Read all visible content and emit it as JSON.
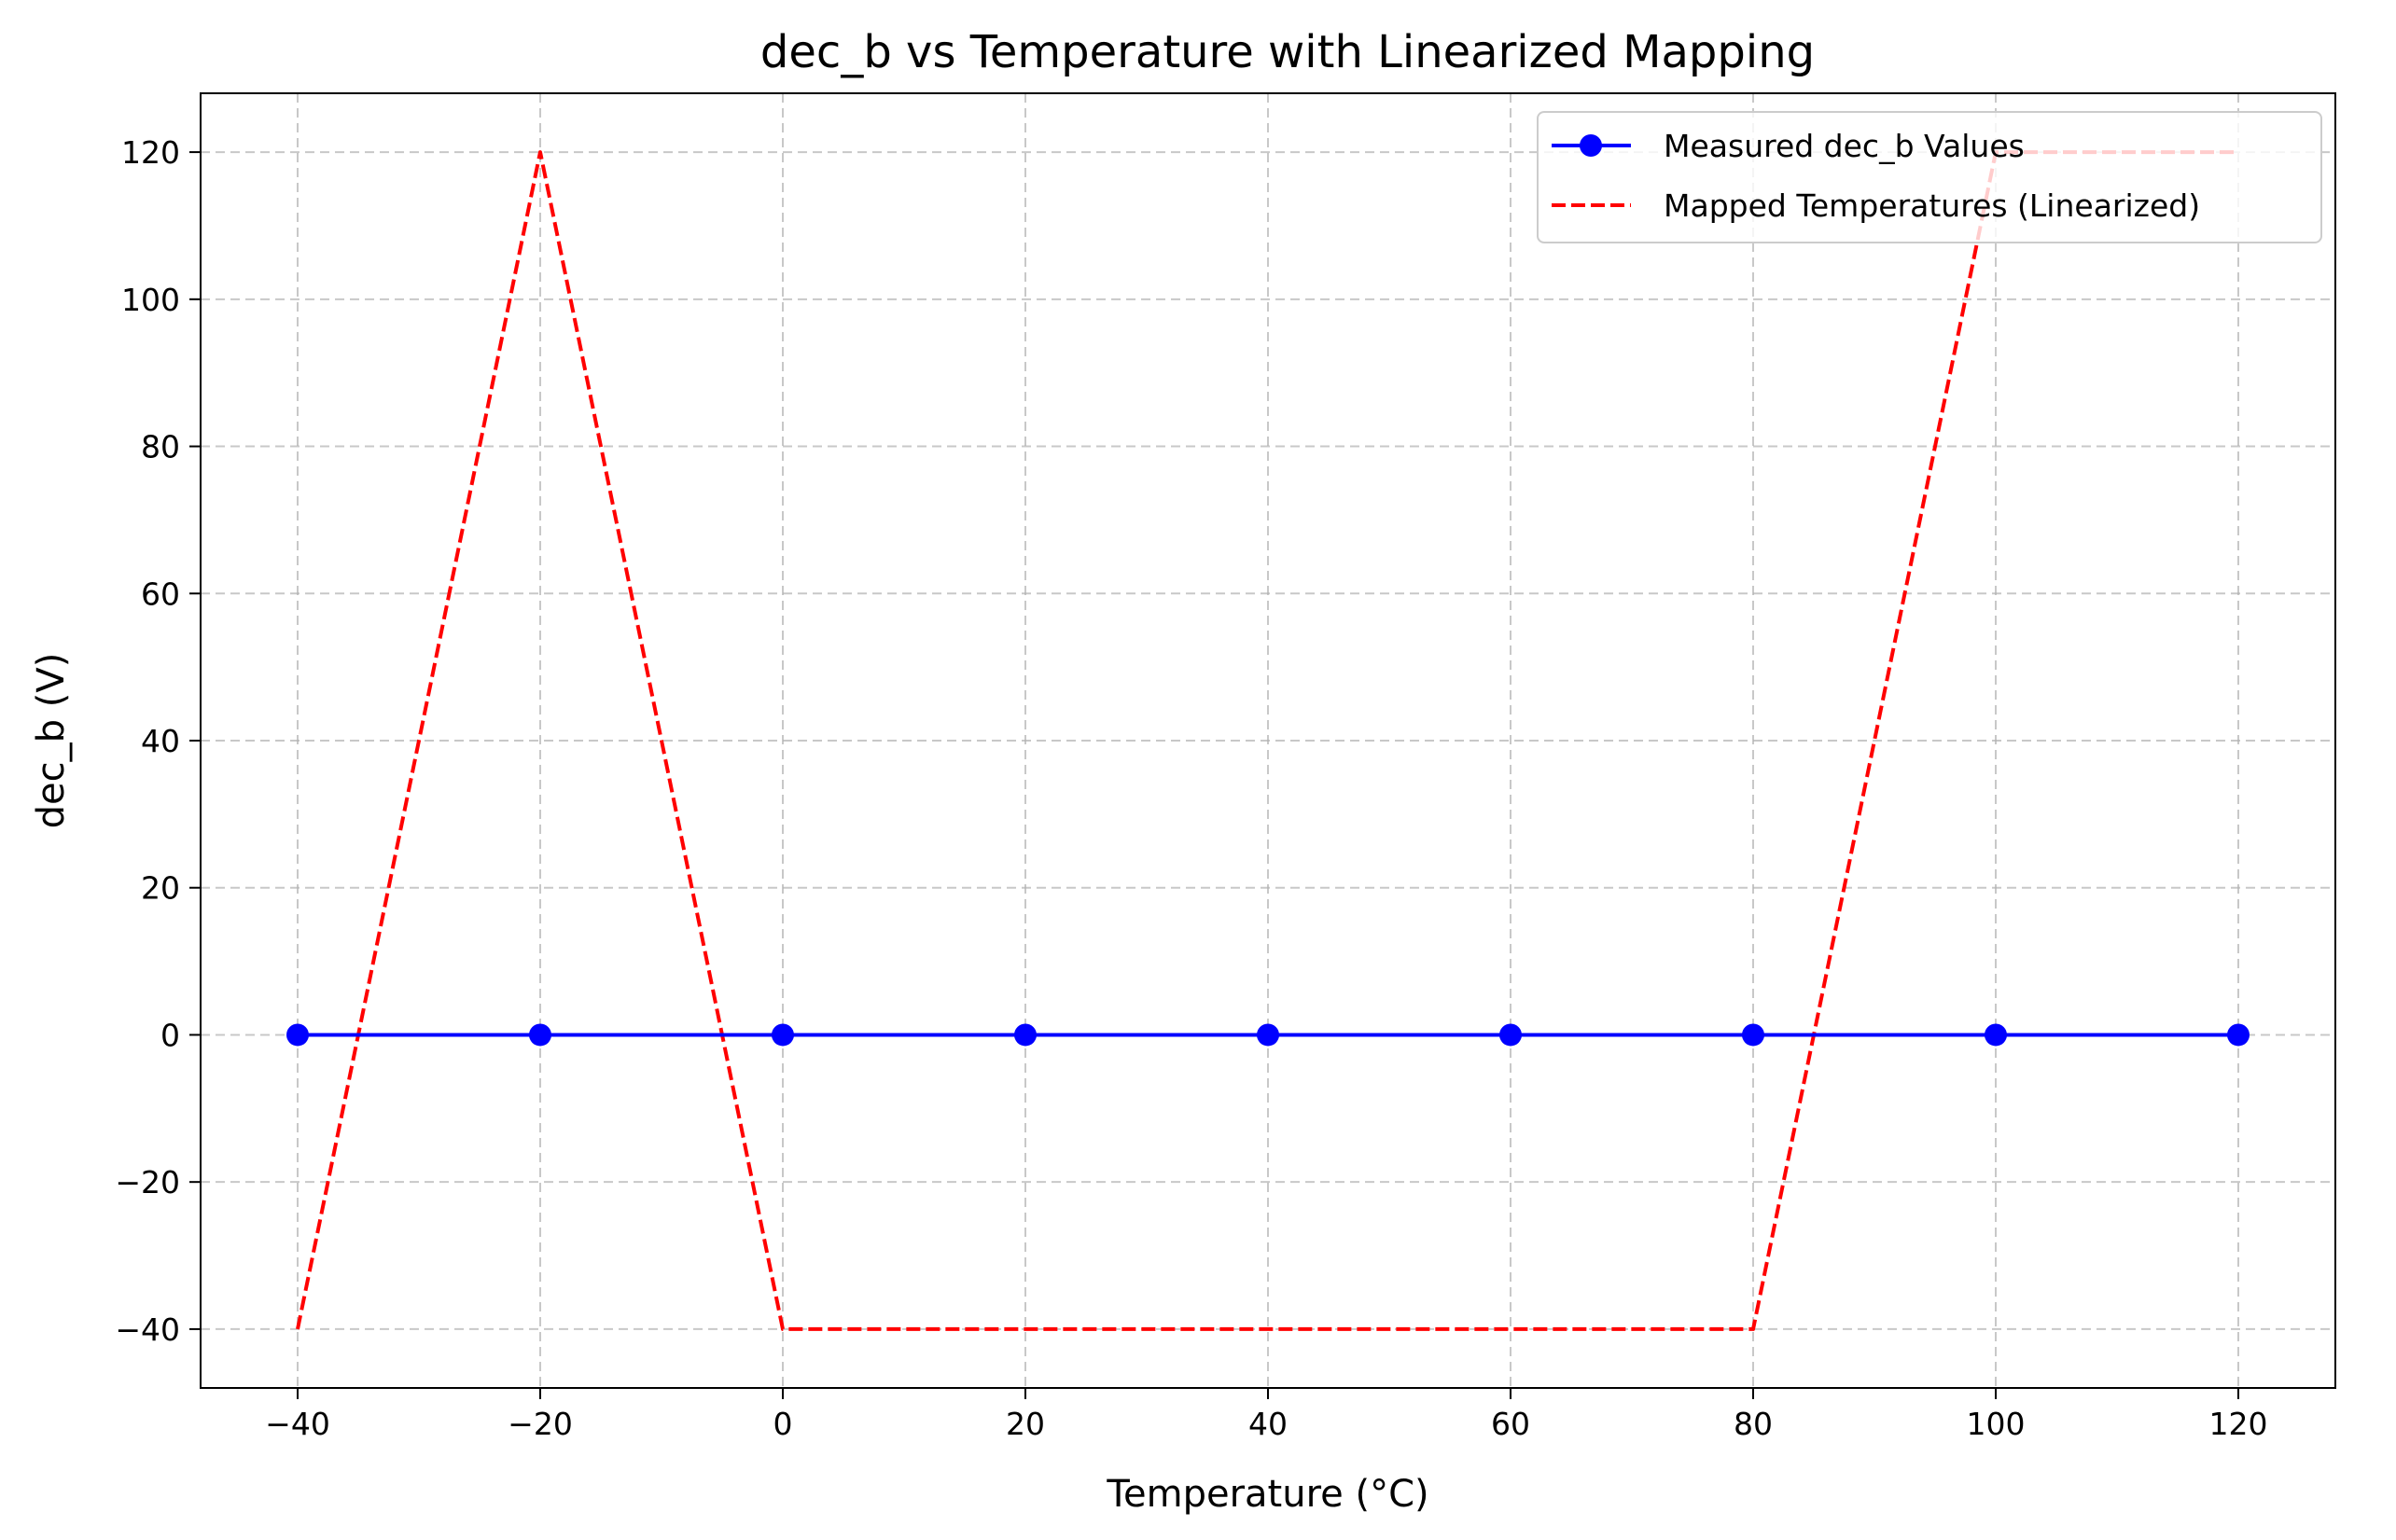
{
  "chart_data": {
    "type": "line",
    "title": "dec_b vs Temperature with Linearized Mapping",
    "xlabel": "Temperature (°C)",
    "ylabel": "dec_b (V)",
    "xlim": [
      -48,
      128
    ],
    "ylim": [
      -48,
      128
    ],
    "xticks": [
      -40,
      -20,
      0,
      20,
      40,
      60,
      80,
      100,
      120
    ],
    "yticks": [
      -40,
      -20,
      0,
      20,
      40,
      60,
      80,
      100,
      120
    ],
    "xtick_labels": [
      "−40",
      "−20",
      "0",
      "20",
      "40",
      "60",
      "80",
      "100",
      "120"
    ],
    "ytick_labels": [
      "−40",
      "−20",
      "0",
      "20",
      "40",
      "60",
      "80",
      "100",
      "120"
    ],
    "grid": true,
    "legend_position": "top-right",
    "x": [
      -40,
      -20,
      0,
      20,
      40,
      60,
      80,
      100,
      120
    ],
    "series": [
      {
        "name": "Measured dec_b Values",
        "values": [
          0,
          0,
          0,
          0,
          0,
          0,
          0,
          0,
          0
        ],
        "color": "#0000ff",
        "style": "solid",
        "marker": "circle"
      },
      {
        "name": "Mapped Temperatures (Linearized)",
        "values": [
          -40,
          120,
          -40,
          -40,
          -40,
          -40,
          -40,
          120,
          120
        ],
        "color": "#ff0000",
        "style": "dashed",
        "marker": "none"
      }
    ]
  }
}
